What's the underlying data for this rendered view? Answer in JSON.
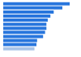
{
  "chart_data": {
    "type": "bar",
    "orientation": "horizontal",
    "categories": [
      null,
      null,
      null,
      null,
      null,
      null,
      null,
      null,
      null,
      null,
      null,
      null
    ],
    "values": [
      100,
      89,
      76,
      71,
      67,
      65,
      65,
      63,
      60,
      51,
      50,
      47
    ],
    "colors": [
      "#2876dd",
      "#2876dd",
      "#2876dd",
      "#2876dd",
      "#2876dd",
      "#2876dd",
      "#2876dd",
      "#2876dd",
      "#2876dd",
      "#2876dd",
      "#2876dd",
      "#a9c4e8"
    ],
    "xlim": [
      0,
      100
    ],
    "grid": false,
    "tick_labels": false
  }
}
